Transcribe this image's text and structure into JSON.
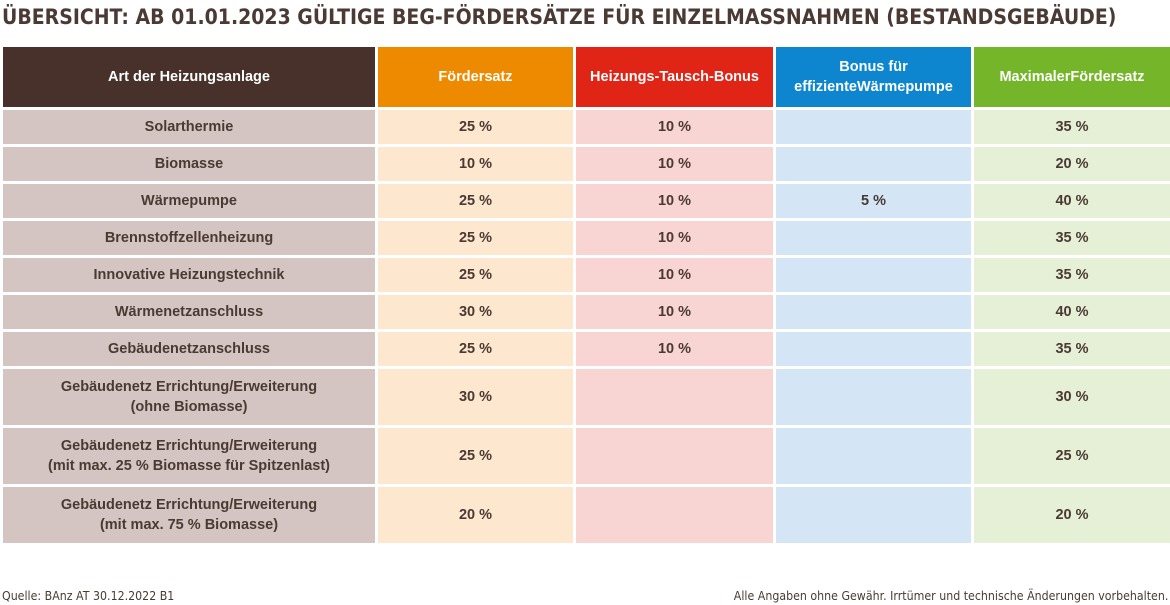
{
  "title": "ÜBERSICHT: AB 01.01.2023 GÜLTIGE BEG-FÖRDERSÄTZE FÜR EINZELMASSNAHMEN (BESTANDSGEBÄUDE)",
  "colors": {
    "header_heating": "#47312a",
    "header_rate": "#ee8a00",
    "header_swap_bonus": "#e02415",
    "header_heatpump_bonus": "#0e86cf",
    "header_max_rate": "#74b52a"
  },
  "table": {
    "headers": [
      [
        "Art der Heizungsanlage"
      ],
      [
        "Fördersatz"
      ],
      [
        "Heizungs-Tausch-",
        "Bonus"
      ],
      [
        "Bonus für effiziente",
        "Wärmepumpe"
      ],
      [
        "Maximaler",
        "Fördersatz"
      ]
    ],
    "rows": [
      {
        "type": [
          "Solarthermie"
        ],
        "rate": "25 %",
        "swap_bonus": "10 %",
        "heatpump_bonus": "",
        "max_rate": "35 %"
      },
      {
        "type": [
          "Biomasse"
        ],
        "rate": "10 %",
        "swap_bonus": "10 %",
        "heatpump_bonus": "",
        "max_rate": "20 %"
      },
      {
        "type": [
          "Wärmepumpe"
        ],
        "rate": "25 %",
        "swap_bonus": "10 %",
        "heatpump_bonus": "5 %",
        "max_rate": "40 %"
      },
      {
        "type": [
          "Brennstoffzellenheizung"
        ],
        "rate": "25 %",
        "swap_bonus": "10 %",
        "heatpump_bonus": "",
        "max_rate": "35 %"
      },
      {
        "type": [
          "Innovative Heizungstechnik"
        ],
        "rate": "25 %",
        "swap_bonus": "10 %",
        "heatpump_bonus": "",
        "max_rate": "35 %"
      },
      {
        "type": [
          "Wärmenetzanschluss"
        ],
        "rate": "30 %",
        "swap_bonus": "10 %",
        "heatpump_bonus": "",
        "max_rate": "40 %"
      },
      {
        "type": [
          "Gebäudenetzanschluss"
        ],
        "rate": "25 %",
        "swap_bonus": "10 %",
        "heatpump_bonus": "",
        "max_rate": "35 %"
      },
      {
        "type": [
          "Gebäudenetz Errichtung/Erweiterung",
          "(ohne Biomasse)"
        ],
        "rate": "30 %",
        "swap_bonus": "",
        "heatpump_bonus": "",
        "max_rate": "30 %"
      },
      {
        "type": [
          "Gebäudenetz Errichtung/Erweiterung",
          "(mit max. 25 % Biomasse für Spitzenlast)"
        ],
        "rate": "25 %",
        "swap_bonus": "",
        "heatpump_bonus": "",
        "max_rate": "25 %"
      },
      {
        "type": [
          "Gebäudenetz Errichtung/Erweiterung",
          "(mit max. 75 % Biomasse)"
        ],
        "rate": "20 %",
        "swap_bonus": "",
        "heatpump_bonus": "",
        "max_rate": "20 %"
      }
    ]
  },
  "footer": {
    "source": "Quelle: BAnz AT 30.12.2022 B1",
    "disclaimer": "Alle Angaben ohne Gewähr. Irrtümer und technische Änderungen vorbehalten."
  }
}
